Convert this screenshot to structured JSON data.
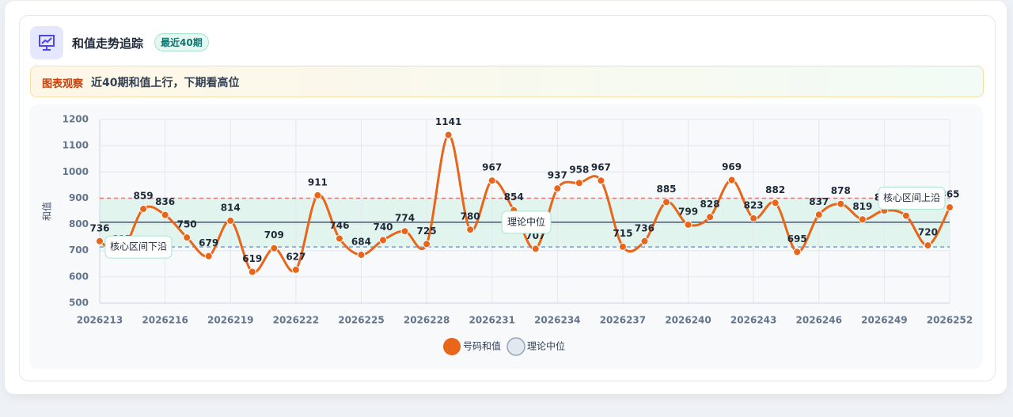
{
  "header": {
    "title": "和值走势追踪",
    "badge": "最近40期"
  },
  "notice": {
    "tag": "图表观察",
    "text": "近40期和值上行，下期看高位"
  },
  "chart_data": {
    "type": "line",
    "y_label": "和值",
    "categories": [
      "2026213",
      null,
      null,
      "2026216",
      null,
      null,
      "2026219",
      null,
      null,
      "2026222",
      null,
      null,
      "2026225",
      null,
      null,
      "2026228",
      null,
      null,
      "2026231",
      null,
      null,
      "2026234",
      null,
      null,
      "2026237",
      null,
      null,
      "2026240",
      null,
      null,
      "2026243",
      null,
      null,
      "2026246",
      null,
      null,
      "2026249",
      null,
      null,
      "2026252"
    ],
    "series": [
      {
        "name": "号码和值",
        "color": "#e8651a",
        "values": [
          736,
          695,
          859,
          836,
          750,
          679,
          814,
          619,
          709,
          627,
          911,
          746,
          684,
          740,
          774,
          725,
          1141,
          780,
          967,
          854,
          707,
          937,
          958,
          967,
          715,
          736,
          885,
          799,
          828,
          969,
          823,
          882,
          695,
          837,
          878,
          819,
          853,
          833,
          720,
          865
        ]
      }
    ],
    "reference_lines": [
      {
        "label": "理论中位",
        "value": 808,
        "color": "#475569"
      },
      {
        "label": "核心区间上沿",
        "value": 900,
        "color": "#e57373"
      },
      {
        "label": "核心区间下沿",
        "value": 714,
        "color": "#6b93d6"
      }
    ],
    "band_color": "#d9f2e8",
    "ylim": [
      500,
      1200
    ],
    "yticks": [
      500,
      600,
      700,
      800,
      900,
      1000,
      1100,
      1200
    ],
    "grid": true
  }
}
